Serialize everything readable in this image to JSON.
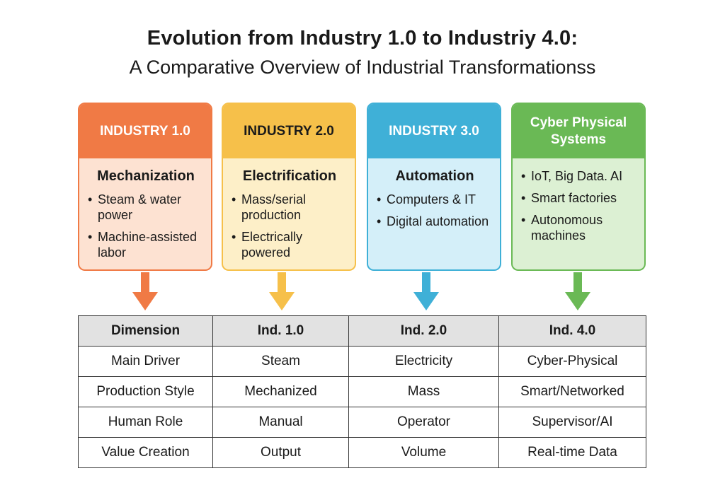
{
  "title": "Evolution from Industry 1.0 to Industriy 4.0:",
  "subtitle": "A Comparative Overview of Industrial Transformationss",
  "cards": [
    {
      "header": "INDUSTRY 1.0",
      "subtitle": "Mechanization",
      "bullets": [
        "Steam & water power",
        "Machine-assisted labor"
      ],
      "color": "#f07a45"
    },
    {
      "header": "INDUSTRY 2.0",
      "subtitle": "Electrification",
      "bullets": [
        "Mass/serial production",
        "Electrically powered"
      ],
      "color": "#f6c04a"
    },
    {
      "header": "INDUSTRY 3.0",
      "subtitle": "Automation",
      "bullets": [
        "Computers & IT",
        "Digital automation"
      ],
      "color": "#3fb0d7"
    },
    {
      "header": "Cyber Physical Systems",
      "bullets": [
        "IoT, Big Data. AI",
        "Smart factories",
        "Autonomous machines"
      ],
      "color": "#6ab955"
    }
  ],
  "table": {
    "headers": [
      "Dimension",
      "Ind. 1.0",
      "Ind. 2.0",
      "Ind. 4.0"
    ],
    "rows": [
      [
        "Main Driver",
        "Steam",
        "Electricity",
        "Cyber-Physical"
      ],
      [
        "Production Style",
        "Mechanized",
        "Mass",
        "Smart/Networked"
      ],
      [
        "Human Role",
        "Manual",
        "Operator",
        "Supervisor/AI"
      ],
      [
        "Value Creation",
        "Output",
        "Volume",
        "Real-time Data"
      ]
    ]
  }
}
